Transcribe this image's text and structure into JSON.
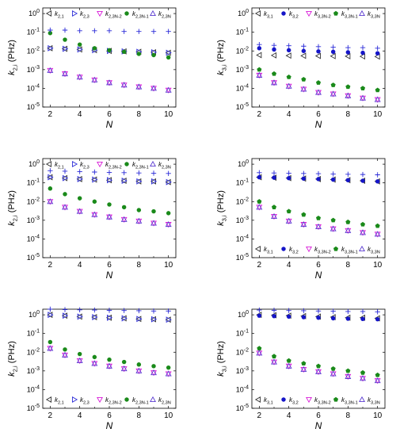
{
  "colors": {
    "plus": "#2a2ad8",
    "left_triangle": "#333333",
    "right_triangle": "#3030d8",
    "down_triangle": "#d81ad8",
    "filled_green": "#1a8a1a",
    "filled_blue": "#1515c8",
    "up_triangle": "#5a3ad0"
  },
  "chart_data": [
    {
      "type": "scatter",
      "scale": "log",
      "xlabel": "N",
      "ylabel": "k_{2,i} (PHz)",
      "xlim": [
        1.5,
        10.5
      ],
      "ylim": [
        1e-05,
        2
      ],
      "xticks": [
        2,
        4,
        6,
        8,
        10
      ],
      "yticks": [
        "10^0",
        "10^-1",
        "10^-2",
        "10^-3",
        "10^-4",
        "10^-5"
      ],
      "legend_position": "top",
      "series": [
        {
          "name": "k_{2,1}",
          "marker": "left-triangle",
          "x": [
            2,
            3,
            4,
            5,
            6,
            7,
            8,
            9,
            10
          ],
          "values": [
            0.014,
            0.013,
            0.012,
            0.011,
            0.01,
            0.0095,
            0.009,
            0.0085,
            0.008
          ]
        },
        {
          "name": "k_{2,3}",
          "marker": "right-triangle",
          "x": [
            2,
            3,
            4,
            5,
            6,
            7,
            8,
            9,
            10
          ],
          "values": [
            0.014,
            0.013,
            0.012,
            0.011,
            0.01,
            0.0095,
            0.009,
            0.0085,
            0.008
          ]
        },
        {
          "name": "k_{2,3N-2}",
          "marker": "down-triangle",
          "x": [
            2,
            3,
            4,
            5,
            6,
            7,
            8,
            9,
            10
          ],
          "values": [
            0.0009,
            0.0006,
            0.0004,
            0.00028,
            0.0002,
            0.00015,
            0.00012,
            0.0001,
            8e-05
          ]
        },
        {
          "name": "k_{2,3N-1}",
          "marker": "filled-circle",
          "x": [
            2,
            3,
            4,
            5,
            6,
            7,
            8,
            9,
            10
          ],
          "values": [
            0.09,
            0.04,
            0.022,
            0.014,
            0.011,
            0.009,
            0.007,
            0.006,
            0.0045
          ]
        },
        {
          "name": "k_{2,3N}",
          "marker": "up-triangle",
          "x": [
            2,
            3,
            4,
            5,
            6,
            7,
            8,
            9,
            10
          ],
          "values": [
            0.0009,
            0.0006,
            0.0004,
            0.00028,
            0.0002,
            0.00015,
            0.00012,
            0.0001,
            8e-05
          ]
        },
        {
          "name": "",
          "marker": "plus",
          "x": [
            2,
            3,
            4,
            5,
            6,
            7,
            8,
            9,
            10
          ],
          "values": [
            0.13,
            0.13,
            0.12,
            0.12,
            0.12,
            0.11,
            0.11,
            0.11,
            0.11
          ]
        }
      ]
    },
    {
      "type": "scatter",
      "scale": "log",
      "xlabel": "N",
      "ylabel": "k_{3,i} (PHz)",
      "xlim": [
        1.5,
        10.5
      ],
      "ylim": [
        1e-05,
        2
      ],
      "xticks": [
        2,
        4,
        6,
        8,
        10
      ],
      "yticks": [
        "10^0",
        "10^-1",
        "10^-2",
        "10^-3",
        "10^-4",
        "10^-5"
      ],
      "legend_position": "top",
      "series": [
        {
          "name": "k_{3,1}",
          "marker": "left-triangle",
          "x": [
            2,
            3,
            4,
            5,
            6,
            7,
            8,
            9,
            10
          ],
          "values": [
            0.006,
            0.0058,
            0.0056,
            0.0055,
            0.0054,
            0.0053,
            0.0052,
            0.0051,
            0.005
          ]
        },
        {
          "name": "k_{3,2}",
          "marker": "filled-circle-blue",
          "x": [
            2,
            3,
            4,
            5,
            6,
            7,
            8,
            9,
            10
          ],
          "values": [
            0.014,
            0.012,
            0.011,
            0.01,
            0.0095,
            0.009,
            0.0085,
            0.008,
            0.0075
          ]
        },
        {
          "name": "k_{3,3N-2}",
          "marker": "down-triangle",
          "x": [
            2,
            3,
            4,
            5,
            6,
            7,
            8,
            9,
            10
          ],
          "values": [
            0.0005,
            0.0002,
            0.00013,
            9e-05,
            6e-05,
            5e-05,
            4e-05,
            3e-05,
            2.5e-05
          ]
        },
        {
          "name": "k_{3,3N-1}",
          "marker": "filled-pentagon",
          "x": [
            2,
            3,
            4,
            5,
            6,
            7,
            8,
            9,
            10
          ],
          "values": [
            0.001,
            0.0006,
            0.0004,
            0.0003,
            0.0002,
            0.00015,
            0.00012,
            0.0001,
            8e-05
          ]
        },
        {
          "name": "k_{3,3N}",
          "marker": "up-triangle",
          "x": [
            2,
            3,
            4,
            5,
            6,
            7,
            8,
            9,
            10
          ],
          "values": [
            0.0005,
            0.0002,
            0.00013,
            9e-05,
            6e-05,
            5e-05,
            4e-05,
            3e-05,
            2.5e-05
          ]
        },
        {
          "name": "",
          "marker": "plus",
          "x": [
            2,
            3,
            4,
            5,
            6,
            7,
            8,
            9,
            10
          ],
          "values": [
            0.022,
            0.02,
            0.019,
            0.018,
            0.017,
            0.016,
            0.015,
            0.015,
            0.014
          ]
        }
      ]
    },
    {
      "type": "scatter",
      "scale": "log",
      "xlabel": "N",
      "ylabel": "k_{2,i} (PHz)",
      "xlim": [
        1.5,
        10.5
      ],
      "ylim": [
        1e-05,
        2
      ],
      "xticks": [
        2,
        4,
        6,
        8,
        10
      ],
      "yticks": [
        "10^0",
        "10^-1",
        "10^-2",
        "10^-3",
        "10^-4",
        "10^-5"
      ],
      "legend_position": "top",
      "series": [
        {
          "name": "k_{2,1}",
          "marker": "left-triangle",
          "x": [
            2,
            3,
            4,
            5,
            6,
            7,
            8,
            9,
            10
          ],
          "values": [
            0.2,
            0.18,
            0.16,
            0.15,
            0.14,
            0.13,
            0.12,
            0.12,
            0.11
          ]
        },
        {
          "name": "k_{2,3}",
          "marker": "right-triangle",
          "x": [
            2,
            3,
            4,
            5,
            6,
            7,
            8,
            9,
            10
          ],
          "values": [
            0.2,
            0.18,
            0.16,
            0.15,
            0.14,
            0.13,
            0.12,
            0.12,
            0.11
          ]
        },
        {
          "name": "k_{2,3N-2}",
          "marker": "down-triangle",
          "x": [
            2,
            3,
            4,
            5,
            6,
            7,
            8,
            9,
            10
          ],
          "values": [
            0.01,
            0.005,
            0.003,
            0.002,
            0.0015,
            0.0011,
            0.0009,
            0.0007,
            0.0006
          ]
        },
        {
          "name": "k_{2,3N-1}",
          "marker": "filled-circle",
          "x": [
            2,
            3,
            4,
            5,
            6,
            7,
            8,
            9,
            10
          ],
          "values": [
            0.05,
            0.025,
            0.015,
            0.01,
            0.007,
            0.005,
            0.0035,
            0.003,
            0.0024
          ]
        },
        {
          "name": "k_{2,3N}",
          "marker": "up-triangle",
          "x": [
            2,
            3,
            4,
            5,
            6,
            7,
            8,
            9,
            10
          ],
          "values": [
            0.01,
            0.005,
            0.003,
            0.002,
            0.0015,
            0.0011,
            0.0009,
            0.0007,
            0.0006
          ]
        },
        {
          "name": "",
          "marker": "plus",
          "x": [
            2,
            3,
            4,
            5,
            6,
            7,
            8,
            9,
            10
          ],
          "values": [
            0.45,
            0.42,
            0.4,
            0.38,
            0.36,
            0.35,
            0.34,
            0.33,
            0.32
          ]
        }
      ]
    },
    {
      "type": "scatter",
      "scale": "log",
      "xlabel": "N",
      "ylabel": "k_{3,i} (PHz)",
      "xlim": [
        1.5,
        10.5
      ],
      "ylim": [
        1e-05,
        2
      ],
      "xticks": [
        2,
        4,
        6,
        8,
        10
      ],
      "yticks": [
        "10^0",
        "10^-1",
        "10^-2",
        "10^-3",
        "10^-4",
        "10^-5"
      ],
      "legend_position": "bottom",
      "series": [
        {
          "name": "k_{3,1}",
          "marker": "left-triangle",
          "x": [
            2,
            3,
            4,
            5,
            6,
            7,
            8,
            9,
            10
          ],
          "values": [
            0.2,
            0.19,
            0.18,
            0.17,
            0.16,
            0.15,
            0.14,
            0.13,
            0.12
          ]
        },
        {
          "name": "k_{3,2}",
          "marker": "filled-circle-blue",
          "x": [
            2,
            3,
            4,
            5,
            6,
            7,
            8,
            9,
            10
          ],
          "values": [
            0.2,
            0.19,
            0.18,
            0.17,
            0.16,
            0.15,
            0.14,
            0.13,
            0.12
          ]
        },
        {
          "name": "k_{3,3N-2}",
          "marker": "down-triangle",
          "x": [
            2,
            3,
            4,
            5,
            6,
            7,
            8,
            9,
            10
          ],
          "values": [
            0.005,
            0.0016,
            0.0009,
            0.0006,
            0.00045,
            0.00035,
            0.00028,
            0.00022,
            0.00018
          ]
        },
        {
          "name": "k_{3,3N-1}",
          "marker": "filled-pentagon",
          "x": [
            2,
            3,
            4,
            5,
            6,
            7,
            8,
            9,
            10
          ],
          "values": [
            0.01,
            0.005,
            0.003,
            0.002,
            0.0013,
            0.001,
            0.0008,
            0.0006,
            0.0005
          ]
        },
        {
          "name": "k_{3,3N}",
          "marker": "up-triangle",
          "x": [
            2,
            3,
            4,
            5,
            6,
            7,
            8,
            9,
            10
          ],
          "values": [
            0.005,
            0.0016,
            0.0009,
            0.0006,
            0.00045,
            0.00035,
            0.00028,
            0.00022,
            0.00018
          ]
        },
        {
          "name": "",
          "marker": "plus",
          "x": [
            2,
            3,
            4,
            5,
            6,
            7,
            8,
            9,
            10
          ],
          "values": [
            0.35,
            0.34,
            0.33,
            0.32,
            0.31,
            0.3,
            0.29,
            0.28,
            0.27
          ]
        }
      ]
    },
    {
      "type": "scatter",
      "scale": "log",
      "xlabel": "N",
      "ylabel": "k_{2,i} (PHz)",
      "xlim": [
        1.5,
        10.5
      ],
      "ylim": [
        1e-05,
        2
      ],
      "xticks": [
        2,
        4,
        6,
        8,
        10
      ],
      "yticks": [
        "10^0",
        "10^-1",
        "10^-2",
        "10^-3",
        "10^-4",
        "10^-5"
      ],
      "legend_position": "bottom",
      "series": [
        {
          "name": "k_{2,1}",
          "marker": "left-triangle",
          "x": [
            2,
            3,
            4,
            5,
            6,
            7,
            8,
            9,
            10
          ],
          "values": [
            1.0,
            0.9,
            0.8,
            0.75,
            0.7,
            0.65,
            0.6,
            0.58,
            0.55
          ]
        },
        {
          "name": "k_{2,3}",
          "marker": "right-triangle",
          "x": [
            2,
            3,
            4,
            5,
            6,
            7,
            8,
            9,
            10
          ],
          "values": [
            1.0,
            0.9,
            0.8,
            0.75,
            0.7,
            0.65,
            0.6,
            0.58,
            0.55
          ]
        },
        {
          "name": "k_{2,3N-2}",
          "marker": "down-triangle",
          "x": [
            2,
            3,
            4,
            5,
            6,
            7,
            8,
            9,
            10
          ],
          "values": [
            0.016,
            0.007,
            0.0035,
            0.0025,
            0.0018,
            0.0013,
            0.001,
            0.0008,
            0.0007
          ]
        },
        {
          "name": "k_{2,3N-1}",
          "marker": "filled-circle",
          "x": [
            2,
            3,
            4,
            5,
            6,
            7,
            8,
            9,
            10
          ],
          "values": [
            0.035,
            0.014,
            0.008,
            0.0055,
            0.004,
            0.003,
            0.0022,
            0.0018,
            0.0015
          ]
        },
        {
          "name": "k_{2,3N}",
          "marker": "up-triangle",
          "x": [
            2,
            3,
            4,
            5,
            6,
            7,
            8,
            9,
            10
          ],
          "values": [
            0.016,
            0.007,
            0.0035,
            0.0025,
            0.0018,
            0.0013,
            0.001,
            0.0008,
            0.0007
          ]
        },
        {
          "name": "",
          "marker": "plus",
          "x": [
            2,
            3,
            4,
            5,
            6,
            7,
            8,
            9,
            10
          ],
          "values": [
            2.0,
            1.9,
            1.85,
            1.8,
            1.75,
            1.7,
            1.65,
            1.6,
            1.6
          ]
        }
      ]
    },
    {
      "type": "scatter",
      "scale": "log",
      "xlabel": "N",
      "ylabel": "k_{3,i} (PHz)",
      "xlim": [
        1.5,
        10.5
      ],
      "ylim": [
        1e-05,
        2
      ],
      "xticks": [
        2,
        4,
        6,
        8,
        10
      ],
      "yticks": [
        "10^0",
        "10^-1",
        "10^-2",
        "10^-3",
        "10^-4",
        "10^-5"
      ],
      "legend_position": "bottom",
      "series": [
        {
          "name": "k_{3,1}",
          "marker": "left-triangle",
          "x": [
            2,
            3,
            4,
            5,
            6,
            7,
            8,
            9,
            10
          ],
          "values": [
            1.0,
            0.95,
            0.9,
            0.85,
            0.8,
            0.75,
            0.7,
            0.7,
            0.65
          ]
        },
        {
          "name": "k_{3,2}",
          "marker": "filled-circle-blue",
          "x": [
            2,
            3,
            4,
            5,
            6,
            7,
            8,
            9,
            10
          ],
          "values": [
            0.9,
            0.85,
            0.8,
            0.75,
            0.7,
            0.65,
            0.62,
            0.6,
            0.58
          ]
        },
        {
          "name": "k_{3,3N-2}",
          "marker": "down-triangle",
          "x": [
            2,
            3,
            4,
            5,
            6,
            7,
            8,
            9,
            10
          ],
          "values": [
            0.009,
            0.003,
            0.0018,
            0.0012,
            0.0009,
            0.0007,
            0.0005,
            0.0004,
            0.0003
          ]
        },
        {
          "name": "k_{3,3N-1}",
          "marker": "filled-pentagon",
          "x": [
            2,
            3,
            4,
            5,
            6,
            7,
            8,
            9,
            10
          ],
          "values": [
            0.016,
            0.006,
            0.0035,
            0.0025,
            0.0018,
            0.0013,
            0.001,
            0.0008,
            0.0006
          ]
        },
        {
          "name": "k_{3,3N}",
          "marker": "up-triangle",
          "x": [
            2,
            3,
            4,
            5,
            6,
            7,
            8,
            9,
            10
          ],
          "values": [
            0.009,
            0.003,
            0.0018,
            0.0012,
            0.0009,
            0.0007,
            0.0005,
            0.0004,
            0.0003
          ]
        },
        {
          "name": "",
          "marker": "plus",
          "x": [
            2,
            3,
            4,
            5,
            6,
            7,
            8,
            9,
            10
          ],
          "values": [
            1.8,
            1.75,
            1.7,
            1.65,
            1.6,
            1.55,
            1.5,
            1.5,
            1.45
          ]
        }
      ]
    }
  ]
}
